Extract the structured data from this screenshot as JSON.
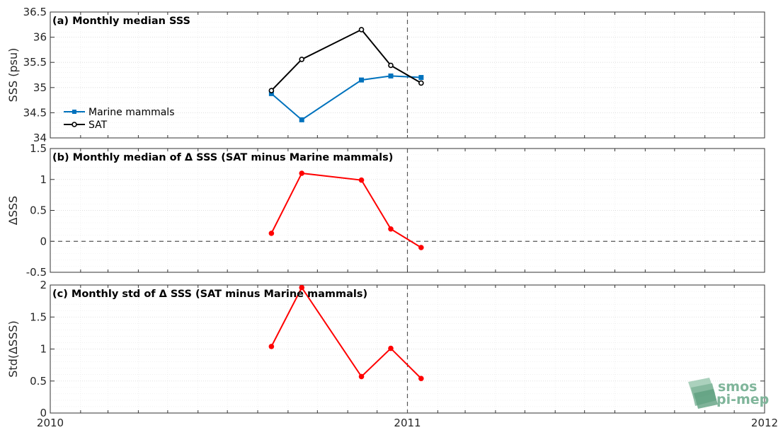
{
  "colors": {
    "marine_mammals": "#0072BD",
    "sat": "#000000",
    "delta": "#FF0000",
    "logo": "#7fb59a"
  },
  "logo": {
    "line1": "smos",
    "line2": "pi-mep"
  },
  "chart_data": [
    {
      "type": "line",
      "title": "(a) Monthly median SSS",
      "ylabel": "SSS (psu)",
      "xlabel": "",
      "x_ticks": [
        "2010",
        "2011",
        "2012"
      ],
      "xlim": [
        "2010-01-01",
        "2012-01-01"
      ],
      "ylim": [
        34,
        36.5
      ],
      "y_ticks": [
        "34",
        "34.5",
        "35",
        "35.5",
        "36",
        "36.5"
      ],
      "legend_position": "bottom-left",
      "vline": "2011-01-01",
      "series": [
        {
          "name": "Marine mammals",
          "marker": "square",
          "x": [
            "2010-08-15",
            "2010-09-15",
            "2010-11-15",
            "2010-12-15",
            "2011-01-15"
          ],
          "values": [
            34.88,
            34.36,
            35.15,
            35.23,
            35.2
          ]
        },
        {
          "name": "SAT",
          "marker": "circle",
          "x": [
            "2010-08-15",
            "2010-09-15",
            "2010-11-15",
            "2010-12-15",
            "2011-01-15"
          ],
          "values": [
            34.94,
            35.56,
            36.15,
            35.44,
            35.09
          ]
        }
      ]
    },
    {
      "type": "line",
      "title": "(b) Monthly median of Δ SSS (SAT minus Marine mammals)",
      "ylabel": "ΔSSS",
      "xlabel": "",
      "xlim": [
        "2010-01-01",
        "2012-01-01"
      ],
      "ylim": [
        -0.5,
        1.5
      ],
      "y_ticks": [
        "-0.5",
        "0",
        "0.5",
        "1",
        "1.5"
      ],
      "hline": 0,
      "vline": "2011-01-01",
      "series": [
        {
          "marker": "circle",
          "x": [
            "2010-08-15",
            "2010-09-15",
            "2010-11-15",
            "2010-12-15",
            "2011-01-15"
          ],
          "values": [
            0.13,
            1.1,
            0.99,
            0.2,
            -0.1
          ]
        }
      ]
    },
    {
      "type": "line",
      "title": "(c) Monthly std of Δ SSS (SAT minus Marine mammals)",
      "ylabel": "Std(ΔSSS)",
      "xlabel": "",
      "x_ticks": [
        "2010",
        "2011",
        "2012"
      ],
      "xlim": [
        "2010-01-01",
        "2012-01-01"
      ],
      "ylim": [
        0,
        2
      ],
      "y_ticks": [
        "0",
        "0.5",
        "1",
        "1.5",
        "2"
      ],
      "vline": "2011-01-01",
      "series": [
        {
          "marker": "circle",
          "x": [
            "2010-08-15",
            "2010-09-15",
            "2010-11-15",
            "2010-12-15",
            "2011-01-15"
          ],
          "values": [
            1.04,
            1.96,
            0.57,
            1.01,
            0.54
          ]
        }
      ]
    }
  ]
}
